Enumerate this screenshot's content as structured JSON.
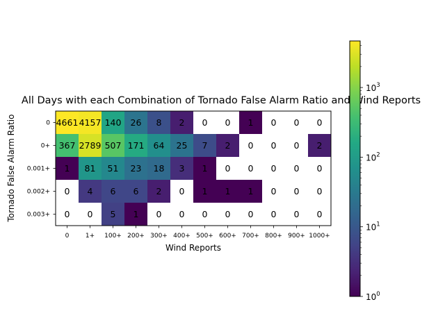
{
  "chart_data": {
    "type": "heatmap",
    "title": "All Days with each Combination of Tornado False Alarm Ratio and Wind Reports",
    "xlabel": "Wind Reports",
    "ylabel": "Tornado False Alarm Ratio",
    "x_categories": [
      "0",
      "1+",
      "100+",
      "200+",
      "300+",
      "400+",
      "500+",
      "600+",
      "700+",
      "800+",
      "900+",
      "1000+"
    ],
    "y_categories": [
      "0",
      "0+",
      "0.001+",
      "0.002+",
      "0.003+"
    ],
    "values": [
      [
        4661,
        4157,
        140,
        26,
        8,
        2,
        0,
        0,
        1,
        0,
        0,
        0
      ],
      [
        367,
        2789,
        507,
        171,
        64,
        25,
        7,
        2,
        0,
        0,
        0,
        2
      ],
      [
        1,
        81,
        51,
        23,
        18,
        3,
        1,
        0,
        0,
        0,
        0,
        0
      ],
      [
        0,
        4,
        6,
        6,
        2,
        0,
        1,
        1,
        1,
        0,
        0,
        0
      ],
      [
        0,
        0,
        5,
        1,
        0,
        0,
        0,
        0,
        0,
        0,
        0,
        0
      ]
    ],
    "zero_color": "#ffffff",
    "colormap": "viridis",
    "color_scale": "log",
    "colorbar": {
      "vmin": 1,
      "vmax": 4661,
      "ticks": [
        {
          "value": 1,
          "base": "10",
          "exp": "0"
        },
        {
          "value": 10,
          "base": "10",
          "exp": "1"
        },
        {
          "value": 100,
          "base": "10",
          "exp": "2"
        },
        {
          "value": 1000,
          "base": "10",
          "exp": "3"
        }
      ]
    }
  }
}
